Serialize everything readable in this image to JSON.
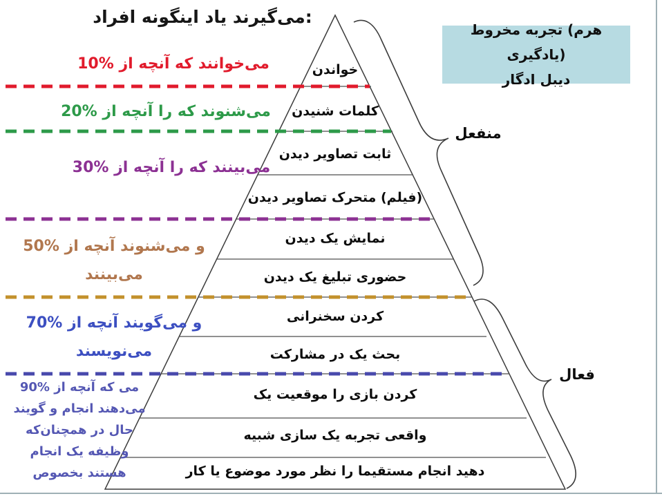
{
  "colors": {
    "red": "#e11b2c",
    "green": "#2d9a49",
    "purple": "#8c3193",
    "gold": "#c3912c",
    "blue_violet": "#4849ac",
    "brown_text": "#b1774e",
    "blue_text": "#3c4fc1",
    "violet_text": "#5457b3",
    "title_box_bg": "#b7dbe2",
    "outline": "#3c3c3c",
    "divider": "#4d4d4d",
    "page_border": "#9fb0b5"
  },
  "heading": "افراد اینگونه یاد می‌گیرند:",
  "title_box": {
    "line1": "مخروط تجربه (هرم یادگیری)",
    "line2": "ادگار دیبل"
  },
  "pyramid_levels": [
    {
      "label": "خواندن"
    },
    {
      "label": "شنیدن کلمات"
    },
    {
      "label": "دیدن تصاویر ثابت"
    },
    {
      "label": "دیدن تصاویر متحرک (فیلم)"
    },
    {
      "label": "دیدن یک نمایش"
    },
    {
      "label": "دیدن یک تبلیغ حضوری"
    },
    {
      "label": "سخنرانی کردن"
    },
    {
      "label": "مشارکت در یک بحث"
    },
    {
      "label": "یک موقعیت را بازی کردن"
    },
    {
      "label": "شبیه سازی یک تجربه واقعی"
    },
    {
      "label": "کار یا موضوع مورد نظر را مستقیما انجام دهید"
    }
  ],
  "retention_labels": {
    "p10": {
      "line1": "10% از آنچه که می‌خوانند"
    },
    "p20": {
      "line1": "20% از آنچه را که می‌شنوند"
    },
    "p30": {
      "line1": "30% از آنچه را که می‌بینند"
    },
    "p50": {
      "line1": "50% از آنچه می‌شنوند و",
      "line2": "می‌بینند"
    },
    "p70": {
      "line1": "70% از آنچه می‌گویند و",
      "line2": "می‌نویسند"
    },
    "p90": {
      "line1": "90% از آنچه که می",
      "line2": "گویند و انجام می‌دهند",
      "line3": "همچنان‌که در حال",
      "line4": "انجام یک وظیفه",
      "line5": "بخصوص هستند"
    }
  },
  "side_labels": {
    "passive": "منفعل",
    "active": "فعال"
  }
}
